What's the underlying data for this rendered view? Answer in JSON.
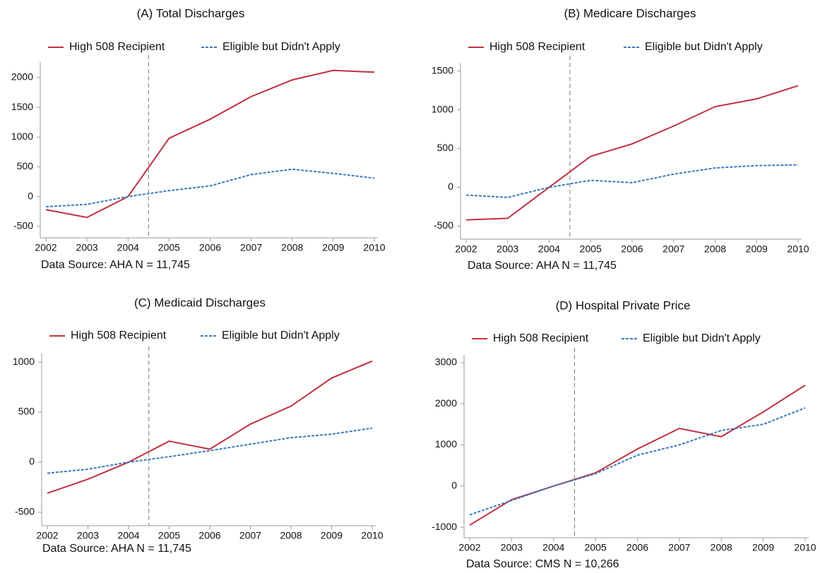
{
  "chart_data": [
    {
      "type": "line",
      "title": "(A) Total Discharges",
      "note": "Data Source: AHA N = 11,745",
      "x": [
        2002,
        2003,
        2004,
        2005,
        2006,
        2007,
        2008,
        2009,
        2010
      ],
      "series": [
        {
          "name": "High 508 Recipient",
          "color": "#c0303f",
          "values": [
            -220,
            -350,
            0,
            980,
            1300,
            1680,
            1960,
            2120,
            2090
          ]
        },
        {
          "name": "Eligible but Didn't Apply",
          "color": "#3a78c0",
          "values": [
            -170,
            -130,
            0,
            100,
            180,
            370,
            460,
            390,
            310
          ]
        }
      ],
      "xlim": [
        2002,
        2010
      ],
      "xticks": [
        2002,
        2003,
        2004,
        2005,
        2006,
        2007,
        2008,
        2009,
        2010
      ],
      "ylim": [
        -550,
        2200
      ],
      "yticks": [
        -500,
        0,
        500,
        1000,
        1500,
        2000
      ],
      "vline": 2004.5
    },
    {
      "type": "line",
      "title": "(B) Medicare Discharges",
      "note": "Data Source: AHA N = 11,745",
      "x": [
        2002,
        2003,
        2004,
        2005,
        2006,
        2007,
        2008,
        2009,
        2010
      ],
      "series": [
        {
          "name": "High 508 Recipient",
          "color": "#c0303f",
          "values": [
            -420,
            -400,
            0,
            400,
            560,
            790,
            1040,
            1140,
            1310
          ]
        },
        {
          "name": "Eligible but Didn't Apply",
          "color": "#3a78c0",
          "values": [
            -100,
            -130,
            0,
            90,
            60,
            170,
            250,
            280,
            290
          ]
        }
      ],
      "xlim": [
        2002,
        2010
      ],
      "xticks": [
        2002,
        2003,
        2004,
        2005,
        2006,
        2007,
        2008,
        2009,
        2010
      ],
      "ylim": [
        -560,
        1560
      ],
      "yticks": [
        -500,
        0,
        500,
        1000,
        1500
      ],
      "vline": 2004.5
    },
    {
      "type": "line",
      "title": "(C) Medicaid Discharges",
      "note": "Data Source: AHA N = 11,745",
      "x": [
        2002,
        2003,
        2004,
        2005,
        2006,
        2007,
        2008,
        2009,
        2010
      ],
      "series": [
        {
          "name": "High 508 Recipient",
          "color": "#c0303f",
          "values": [
            -310,
            -170,
            0,
            210,
            130,
            380,
            560,
            840,
            1010
          ]
        },
        {
          "name": "Eligible but Didn't Apply",
          "color": "#3a78c0",
          "values": [
            -110,
            -70,
            0,
            55,
            115,
            180,
            245,
            280,
            340
          ]
        }
      ],
      "xlim": [
        2002,
        2010
      ],
      "xticks": [
        2002,
        2003,
        2004,
        2005,
        2006,
        2007,
        2008,
        2009,
        2010
      ],
      "ylim": [
        -550,
        1050
      ],
      "yticks": [
        -500,
        0,
        500,
        1000
      ],
      "vline": 2004.5
    },
    {
      "type": "line",
      "title": "(D) Hospital Private Price",
      "note": "Data Source: CMS N = 10,266",
      "x": [
        2002,
        2003,
        2004,
        2005,
        2006,
        2007,
        2008,
        2009,
        2010
      ],
      "series": [
        {
          "name": "High 508 Recipient",
          "color": "#c0303f",
          "values": [
            -950,
            -330,
            0,
            320,
            900,
            1400,
            1200,
            1800,
            2450
          ]
        },
        {
          "name": "Eligible but Didn't Apply",
          "color": "#3a78c0",
          "values": [
            -700,
            -350,
            0,
            300,
            750,
            1000,
            1350,
            1500,
            1900
          ]
        }
      ],
      "xlim": [
        2002,
        2010
      ],
      "xticks": [
        2002,
        2003,
        2004,
        2005,
        2006,
        2007,
        2008,
        2009,
        2010
      ],
      "ylim": [
        -1050,
        3100
      ],
      "yticks": [
        -1000,
        0,
        1000,
        2000,
        3000
      ],
      "vline": 2004.5
    }
  ]
}
